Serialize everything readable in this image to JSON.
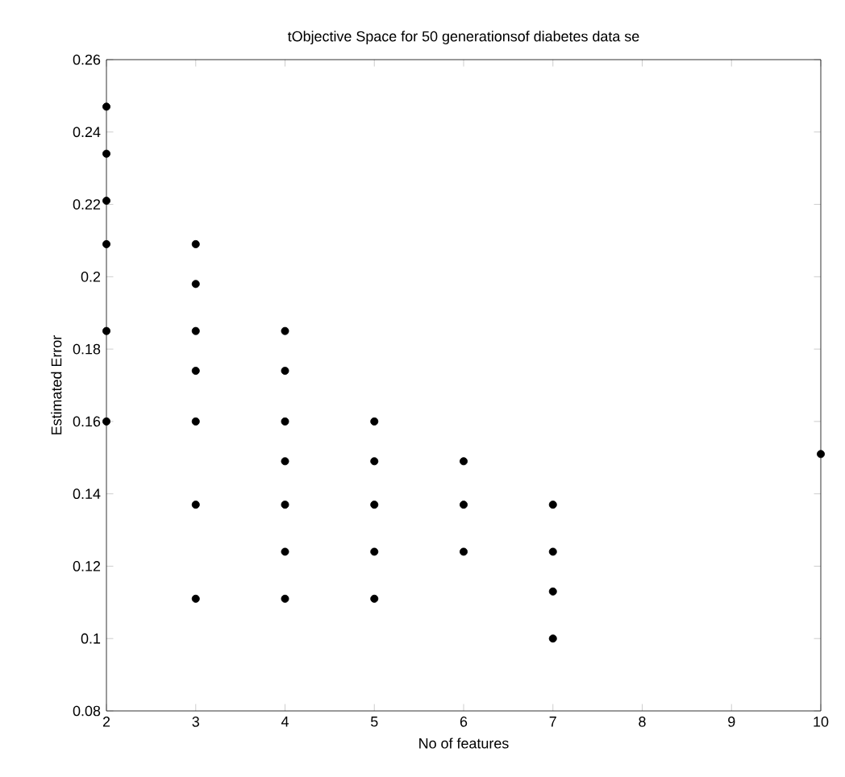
{
  "chart_data": {
    "type": "scatter",
    "title": "tObjective Space for 50 generationsof diabetes data se",
    "xlabel": "No of features",
    "ylabel": "Estimated Error",
    "series": [
      {
        "color": "#000000",
        "x": [
          2,
          2,
          2,
          2,
          2,
          2,
          3,
          3,
          3,
          3,
          3,
          3,
          3,
          4,
          4,
          4,
          4,
          4,
          4,
          4,
          5,
          5,
          5,
          5,
          5,
          6,
          6,
          6,
          7,
          7,
          7,
          7,
          10
        ],
        "values": [
          0.247,
          0.234,
          0.221,
          0.209,
          0.185,
          0.16,
          0.209,
          0.198,
          0.185,
          0.174,
          0.16,
          0.137,
          0.111,
          0.185,
          0.174,
          0.16,
          0.149,
          0.137,
          0.124,
          0.111,
          0.16,
          0.149,
          0.137,
          0.124,
          0.111,
          0.149,
          0.137,
          0.124,
          0.137,
          0.124,
          0.113,
          0.1,
          0.151
        ]
      }
    ],
    "xlim": [
      2,
      10
    ],
    "ylim": [
      0.08,
      0.26
    ],
    "xticks": [
      2,
      3,
      4,
      5,
      6,
      7,
      8,
      9,
      10
    ],
    "yticks": [
      0.08,
      0.1,
      0.12,
      0.14,
      0.16,
      0.18,
      0.2,
      0.22,
      0.24,
      0.26
    ],
    "marker": "circle"
  }
}
